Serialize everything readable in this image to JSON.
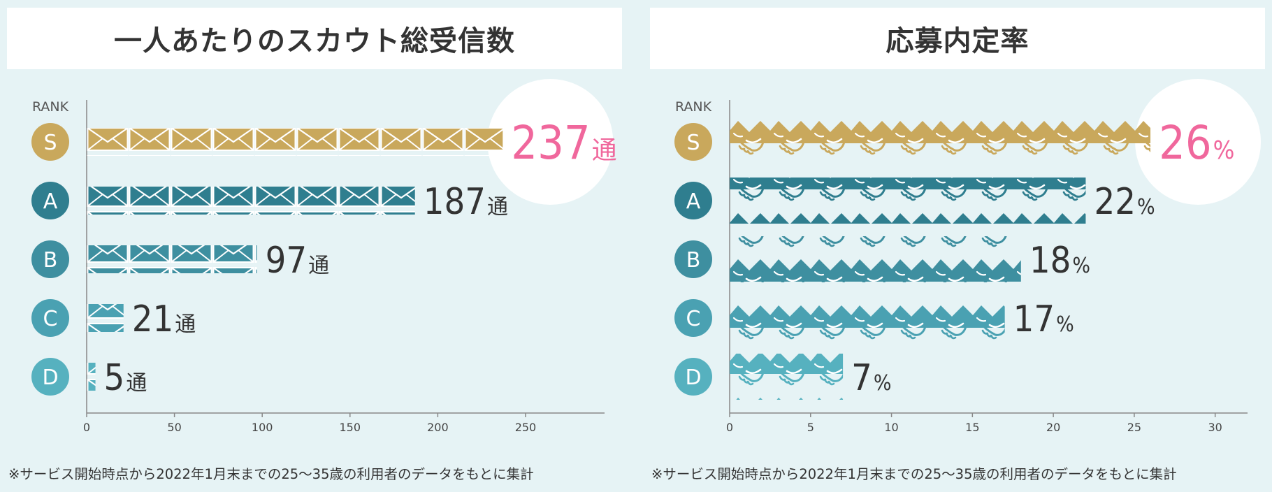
{
  "rank_header": "RANK",
  "colors": {
    "S": "#c9a85c",
    "A": "#2f7e8f",
    "B": "#3e8fa0",
    "C": "#4aa1b2",
    "D": "#56b1bf",
    "highlight_text": "#f0679c",
    "value_text": "#333333",
    "axis": "#888888",
    "circle": "#ffffff"
  },
  "left": {
    "title": "一人あたりのスカウト総受信数",
    "footnote": "※サービス開始時点から2022年1月末までの25〜35歳の利用者のデータをもとに集計",
    "icon": "envelope-icon",
    "chart_data": {
      "type": "bar",
      "orientation": "horizontal",
      "categories": [
        "S",
        "A",
        "B",
        "C",
        "D"
      ],
      "values": [
        237,
        187,
        97,
        21,
        5
      ],
      "value_labels": [
        "237",
        "187",
        "97",
        "21",
        "5"
      ],
      "unit": "通",
      "xlim": [
        0,
        295
      ],
      "xticks": [
        0,
        50,
        100,
        150,
        200,
        250
      ],
      "highlight": "S"
    }
  },
  "right": {
    "title": "応募内定率",
    "footnote": "※サービス開始時点から2022年1月末までの25〜35歳の利用者のデータをもとに集計",
    "icon": "handshake-icon",
    "chart_data": {
      "type": "bar",
      "orientation": "horizontal",
      "categories": [
        "S",
        "A",
        "B",
        "C",
        "D"
      ],
      "values": [
        26,
        22,
        18,
        17,
        7
      ],
      "value_labels": [
        "26",
        "22",
        "18",
        "17",
        "7"
      ],
      "unit": "%",
      "xlim": [
        0,
        32
      ],
      "xticks": [
        0,
        5,
        10,
        15,
        20,
        25,
        30
      ],
      "highlight": "S"
    }
  }
}
